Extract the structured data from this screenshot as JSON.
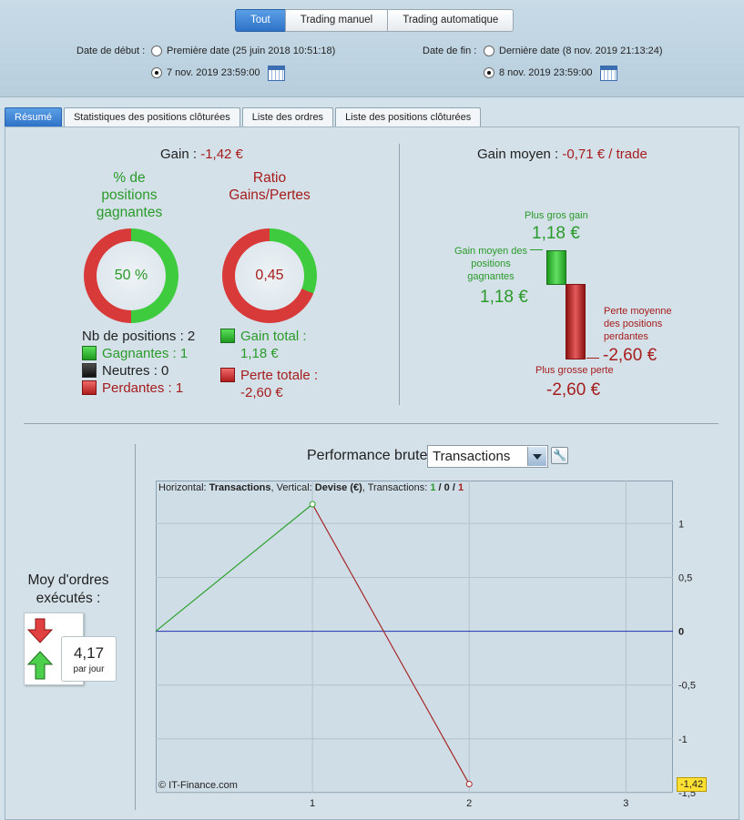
{
  "modes": [
    "Tout",
    "Trading manuel",
    "Trading automatique"
  ],
  "date_start": {
    "label": "Date de début :",
    "option1": "Première date (25 juin 2018 10:51:18)",
    "option2": "7 nov. 2019 23:59:00"
  },
  "date_end": {
    "label": "Date de fin :",
    "option1": "Dernière date (8 nov. 2019 21:13:24)",
    "option2": "8 nov. 2019 23:59:00"
  },
  "tabs": [
    "Résumé",
    "Statistiques des positions clôturées",
    "Liste des ordres",
    "Liste des positions clôturées"
  ],
  "summary": {
    "gain_label": "Gain :",
    "gain_value": "-1,42 €",
    "pct_title": "% de positions gagnantes",
    "pct_value": "50 %",
    "pct_fraction": 0.5,
    "ratio_title": "Ratio Gains/Pertes",
    "ratio_value": "0,45",
    "ratio_fraction": 0.31,
    "nb_positions": "Nb de positions : 2",
    "winning": "Gagnantes : 1",
    "neutral": "Neutres : 0",
    "losing": "Perdantes : 1",
    "total_gain_label": "Gain total :",
    "total_gain_value": "1,18 €",
    "total_loss_label": "Perte totale :",
    "total_loss_value": "-2,60 €",
    "avg_gain_label": "Gain moyen :",
    "avg_gain_value": "-0,71 € / trade",
    "biggest_gain_label": "Plus gros gain",
    "biggest_gain_value": "1,18 €",
    "avg_win_label": "Gain moyen des positions gagnantes",
    "avg_win_value": "1,18 €",
    "avg_loss_label": "Perte moyenne des positions perdantes",
    "avg_loss_value": "-2,60 €",
    "biggest_loss_label": "Plus grosse perte",
    "biggest_loss_value": "-2,60 €"
  },
  "orders": {
    "label": "Moy d'ordres exécutés :",
    "value": "4,17",
    "unit": "par jour"
  },
  "perf": {
    "title": "Performance brute",
    "select_value": "Transactions",
    "info_prefix": "Horizontal: ",
    "info_h": "Transactions",
    "info_mid": ", Vertical: ",
    "info_v": "Devise (€)",
    "info_t": ", Transactions: ",
    "count_win": "1",
    "count_sep1": " / ",
    "count_neutral": "0",
    "count_sep2": " / ",
    "count_loss": "1",
    "copyright": "© IT-Finance.com",
    "last_value_tag": "-1,42"
  },
  "chart_data": {
    "type": "line",
    "x": [
      0,
      1,
      2
    ],
    "y": [
      0,
      1.18,
      -1.42
    ],
    "xlim": [
      0,
      3.3
    ],
    "ylim": [
      -1.5,
      1.4
    ],
    "xticks": [
      "1",
      "2",
      "3"
    ],
    "yticks": [
      "1",
      "0,5",
      "0",
      "-0,5",
      "-1",
      "-1,5"
    ],
    "ytick_values": [
      1,
      0.5,
      0,
      -0.5,
      -1,
      -1.5
    ],
    "colors": {
      "up": "#2da02d",
      "down": "#a52a2a",
      "zero": "#1f2fb0"
    }
  }
}
